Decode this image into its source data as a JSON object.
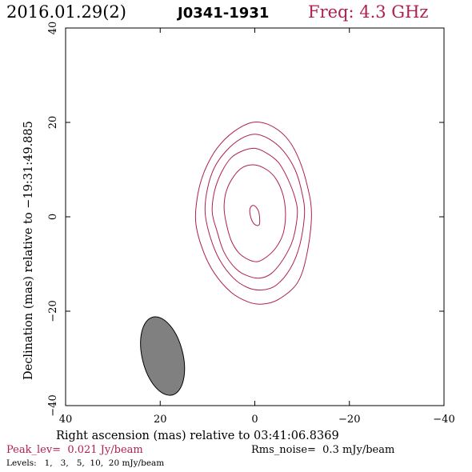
{
  "header": {
    "date": "2016.01.29(2)",
    "source": "J0341-1931",
    "freq": "Freq: 4.3 GHz"
  },
  "footer": {
    "peak": "Peak_lev=  0.021 Jy/beam",
    "rms": "Rms_noise=  0.3 mJy/beam",
    "levels": "Levels:   1,   3,   5,  10,  20 mJy/beam"
  },
  "colors": {
    "contour": "#b0204e",
    "beam_fill": "#808080",
    "text_accent": "#b0204e"
  },
  "chart_data": {
    "type": "contour",
    "title": "",
    "xlabel": "Right ascension (mas) relative to 03:41:06.8369",
    "ylabel": "Declination (mas) relative to −19:31:49.885",
    "xlim": [
      40,
      -40
    ],
    "ylim": [
      -40,
      40
    ],
    "x_reversed": true,
    "x_ticks": [
      40,
      20,
      0,
      -20,
      -40
    ],
    "x_tick_labels": [
      "40",
      "20",
      "0",
      "−20",
      "−40"
    ],
    "y_ticks": [
      -40,
      -20,
      0,
      20,
      40
    ],
    "y_tick_labels": [
      "−40",
      "−20",
      "0",
      "20",
      "40"
    ],
    "levels_mJy_per_beam": [
      1,
      3,
      5,
      10,
      20
    ],
    "contours": [
      {
        "level": 1,
        "points": [
          [
            -12,
            0.5
          ],
          [
            -11,
            -8
          ],
          [
            -9,
            -14
          ],
          [
            -5,
            -17.5
          ],
          [
            -1.5,
            -18.5
          ],
          [
            1.5,
            -18
          ],
          [
            5,
            -16
          ],
          [
            8.5,
            -12
          ],
          [
            11,
            -7
          ],
          [
            12.5,
            -1
          ],
          [
            12,
            5
          ],
          [
            10.5,
            10
          ],
          [
            8,
            14.5
          ],
          [
            4.5,
            18
          ],
          [
            0.5,
            20
          ],
          [
            -3,
            19.5
          ],
          [
            -6.5,
            17
          ],
          [
            -9,
            13
          ],
          [
            -11,
            7
          ]
        ]
      },
      {
        "level": 3,
        "points": [
          [
            -10.5,
            0.5
          ],
          [
            -9.5,
            -6
          ],
          [
            -7.5,
            -11
          ],
          [
            -4.5,
            -14.5
          ],
          [
            -1.5,
            -15.5
          ],
          [
            1.5,
            -15
          ],
          [
            4.5,
            -13
          ],
          [
            7.5,
            -9
          ],
          [
            9.5,
            -4
          ],
          [
            10.5,
            1
          ],
          [
            10,
            6
          ],
          [
            8.5,
            10.5
          ],
          [
            6,
            14
          ],
          [
            3,
            16.5
          ],
          [
            0,
            17.5
          ],
          [
            -3,
            16.5
          ],
          [
            -6,
            14
          ],
          [
            -8.5,
            10
          ],
          [
            -10,
            5
          ]
        ]
      },
      {
        "level": 5,
        "points": [
          [
            -9,
            0.5
          ],
          [
            -8,
            -5
          ],
          [
            -6,
            -9
          ],
          [
            -3.5,
            -12
          ],
          [
            -1,
            -13
          ],
          [
            1.5,
            -12.5
          ],
          [
            4,
            -11
          ],
          [
            6.5,
            -7.5
          ],
          [
            8,
            -3
          ],
          [
            9,
            1
          ],
          [
            8.5,
            5.5
          ],
          [
            7,
            9.5
          ],
          [
            5,
            12.5
          ],
          [
            2.5,
            14
          ],
          [
            0,
            14.5
          ],
          [
            -2.5,
            13.5
          ],
          [
            -5,
            11.5
          ],
          [
            -7,
            8
          ],
          [
            -8.5,
            4
          ]
        ]
      },
      {
        "level": 10,
        "points": [
          [
            -6.5,
            0.5
          ],
          [
            -6,
            -3.5
          ],
          [
            -4.5,
            -6.5
          ],
          [
            -2.5,
            -8.5
          ],
          [
            -0.5,
            -9.5
          ],
          [
            1.5,
            -9
          ],
          [
            3.5,
            -7.5
          ],
          [
            5,
            -5
          ],
          [
            6,
            -1.5
          ],
          [
            6.5,
            2
          ],
          [
            6,
            5.5
          ],
          [
            4.5,
            8.5
          ],
          [
            2.5,
            10.5
          ],
          [
            0,
            11
          ],
          [
            -2.5,
            10
          ],
          [
            -4.5,
            8
          ],
          [
            -6,
            4.5
          ]
        ]
      },
      {
        "level": 20,
        "points": [
          [
            -1,
            -1.5
          ],
          [
            -0.3,
            -1.8
          ],
          [
            0.5,
            -1
          ],
          [
            1,
            0.5
          ],
          [
            1,
            1.8
          ],
          [
            0.4,
            2.4
          ],
          [
            -0.3,
            2
          ],
          [
            -0.9,
            0.8
          ]
        ]
      }
    ],
    "beam": {
      "x": 19.5,
      "y": -29.5,
      "rx": 4.3,
      "ry": 8.5,
      "angle_deg": -14
    },
    "grid": false,
    "legend": "none"
  }
}
